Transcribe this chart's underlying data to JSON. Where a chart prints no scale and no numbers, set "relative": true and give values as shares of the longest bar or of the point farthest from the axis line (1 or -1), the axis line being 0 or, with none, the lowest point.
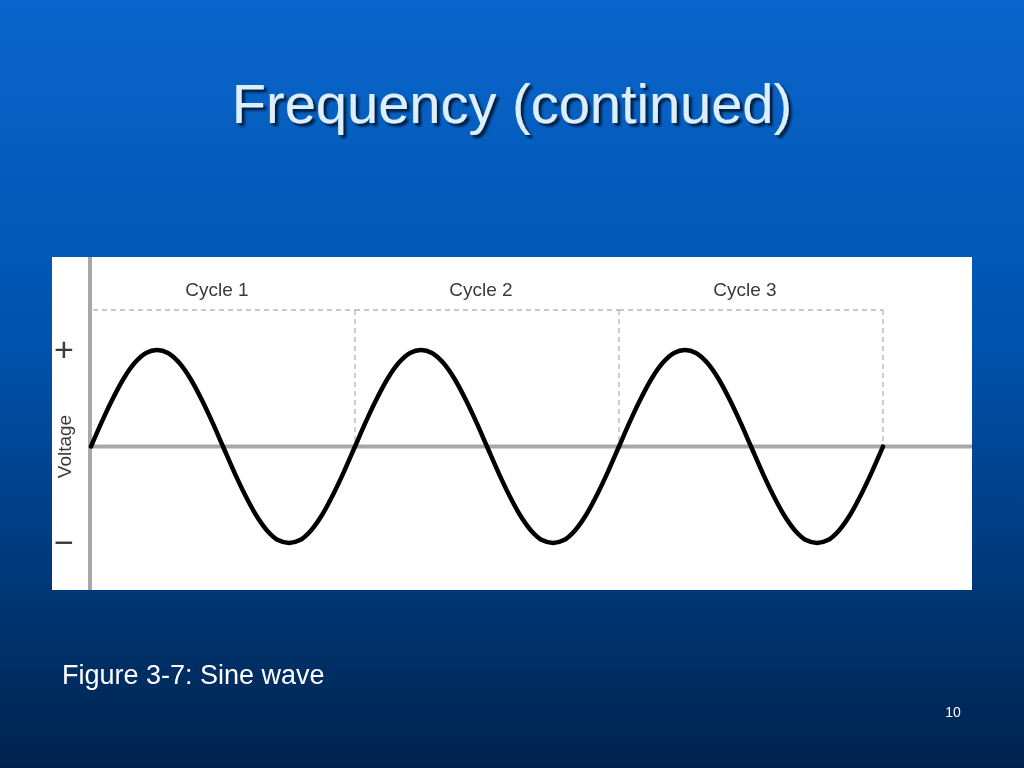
{
  "chart_data": {
    "type": "line",
    "title": "Frequency (continued)",
    "ylabel": "Voltage",
    "relative": true,
    "categories": [
      null,
      null,
      null,
      null,
      null,
      null,
      null,
      null,
      null,
      null,
      null,
      null,
      null,
      null,
      null,
      null,
      null,
      null,
      null,
      null,
      null,
      null,
      null,
      null,
      null,
      null,
      null,
      null,
      null,
      null,
      null,
      null,
      null,
      null,
      null,
      null,
      null,
      null,
      null,
      null,
      null,
      null,
      null,
      null,
      null,
      null,
      null,
      null,
      null,
      null,
      null,
      null,
      null,
      null,
      null,
      null,
      null,
      null,
      null,
      null,
      null,
      null,
      null,
      null,
      null,
      null,
      null,
      null,
      null,
      null,
      null,
      null,
      null
    ],
    "series": [
      {
        "color": "#000000",
        "values": [
          0,
          0.26,
          0.5,
          0.71,
          0.87,
          0.97,
          1,
          0.97,
          0.87,
          0.71,
          0.5,
          0.26,
          0,
          -0.26,
          -0.5,
          -0.71,
          -0.87,
          -0.97,
          -1,
          -0.97,
          -0.87,
          -0.71,
          -0.5,
          -0.26,
          0,
          0.26,
          0.5,
          0.71,
          0.87,
          0.97,
          1,
          0.97,
          0.87,
          0.71,
          0.5,
          0.26,
          0,
          -0.26,
          -0.5,
          -0.71,
          -0.87,
          -0.97,
          -1,
          -0.97,
          -0.87,
          -0.71,
          -0.5,
          -0.26,
          0,
          0.26,
          0.5,
          0.71,
          0.87,
          0.97,
          1,
          0.97,
          0.87,
          0.71,
          0.5,
          0.26,
          0,
          -0.26,
          -0.5,
          -0.71,
          -0.87,
          -0.97,
          -1,
          -0.97,
          -0.87,
          -0.71,
          -0.5,
          -0.26,
          0
        ]
      }
    ],
    "annotations": [
      "+",
      "−",
      "Cycle 1",
      "Cycle 2",
      "Cycle 3",
      "Figure 3-7: Sine wave",
      "10"
    ]
  }
}
